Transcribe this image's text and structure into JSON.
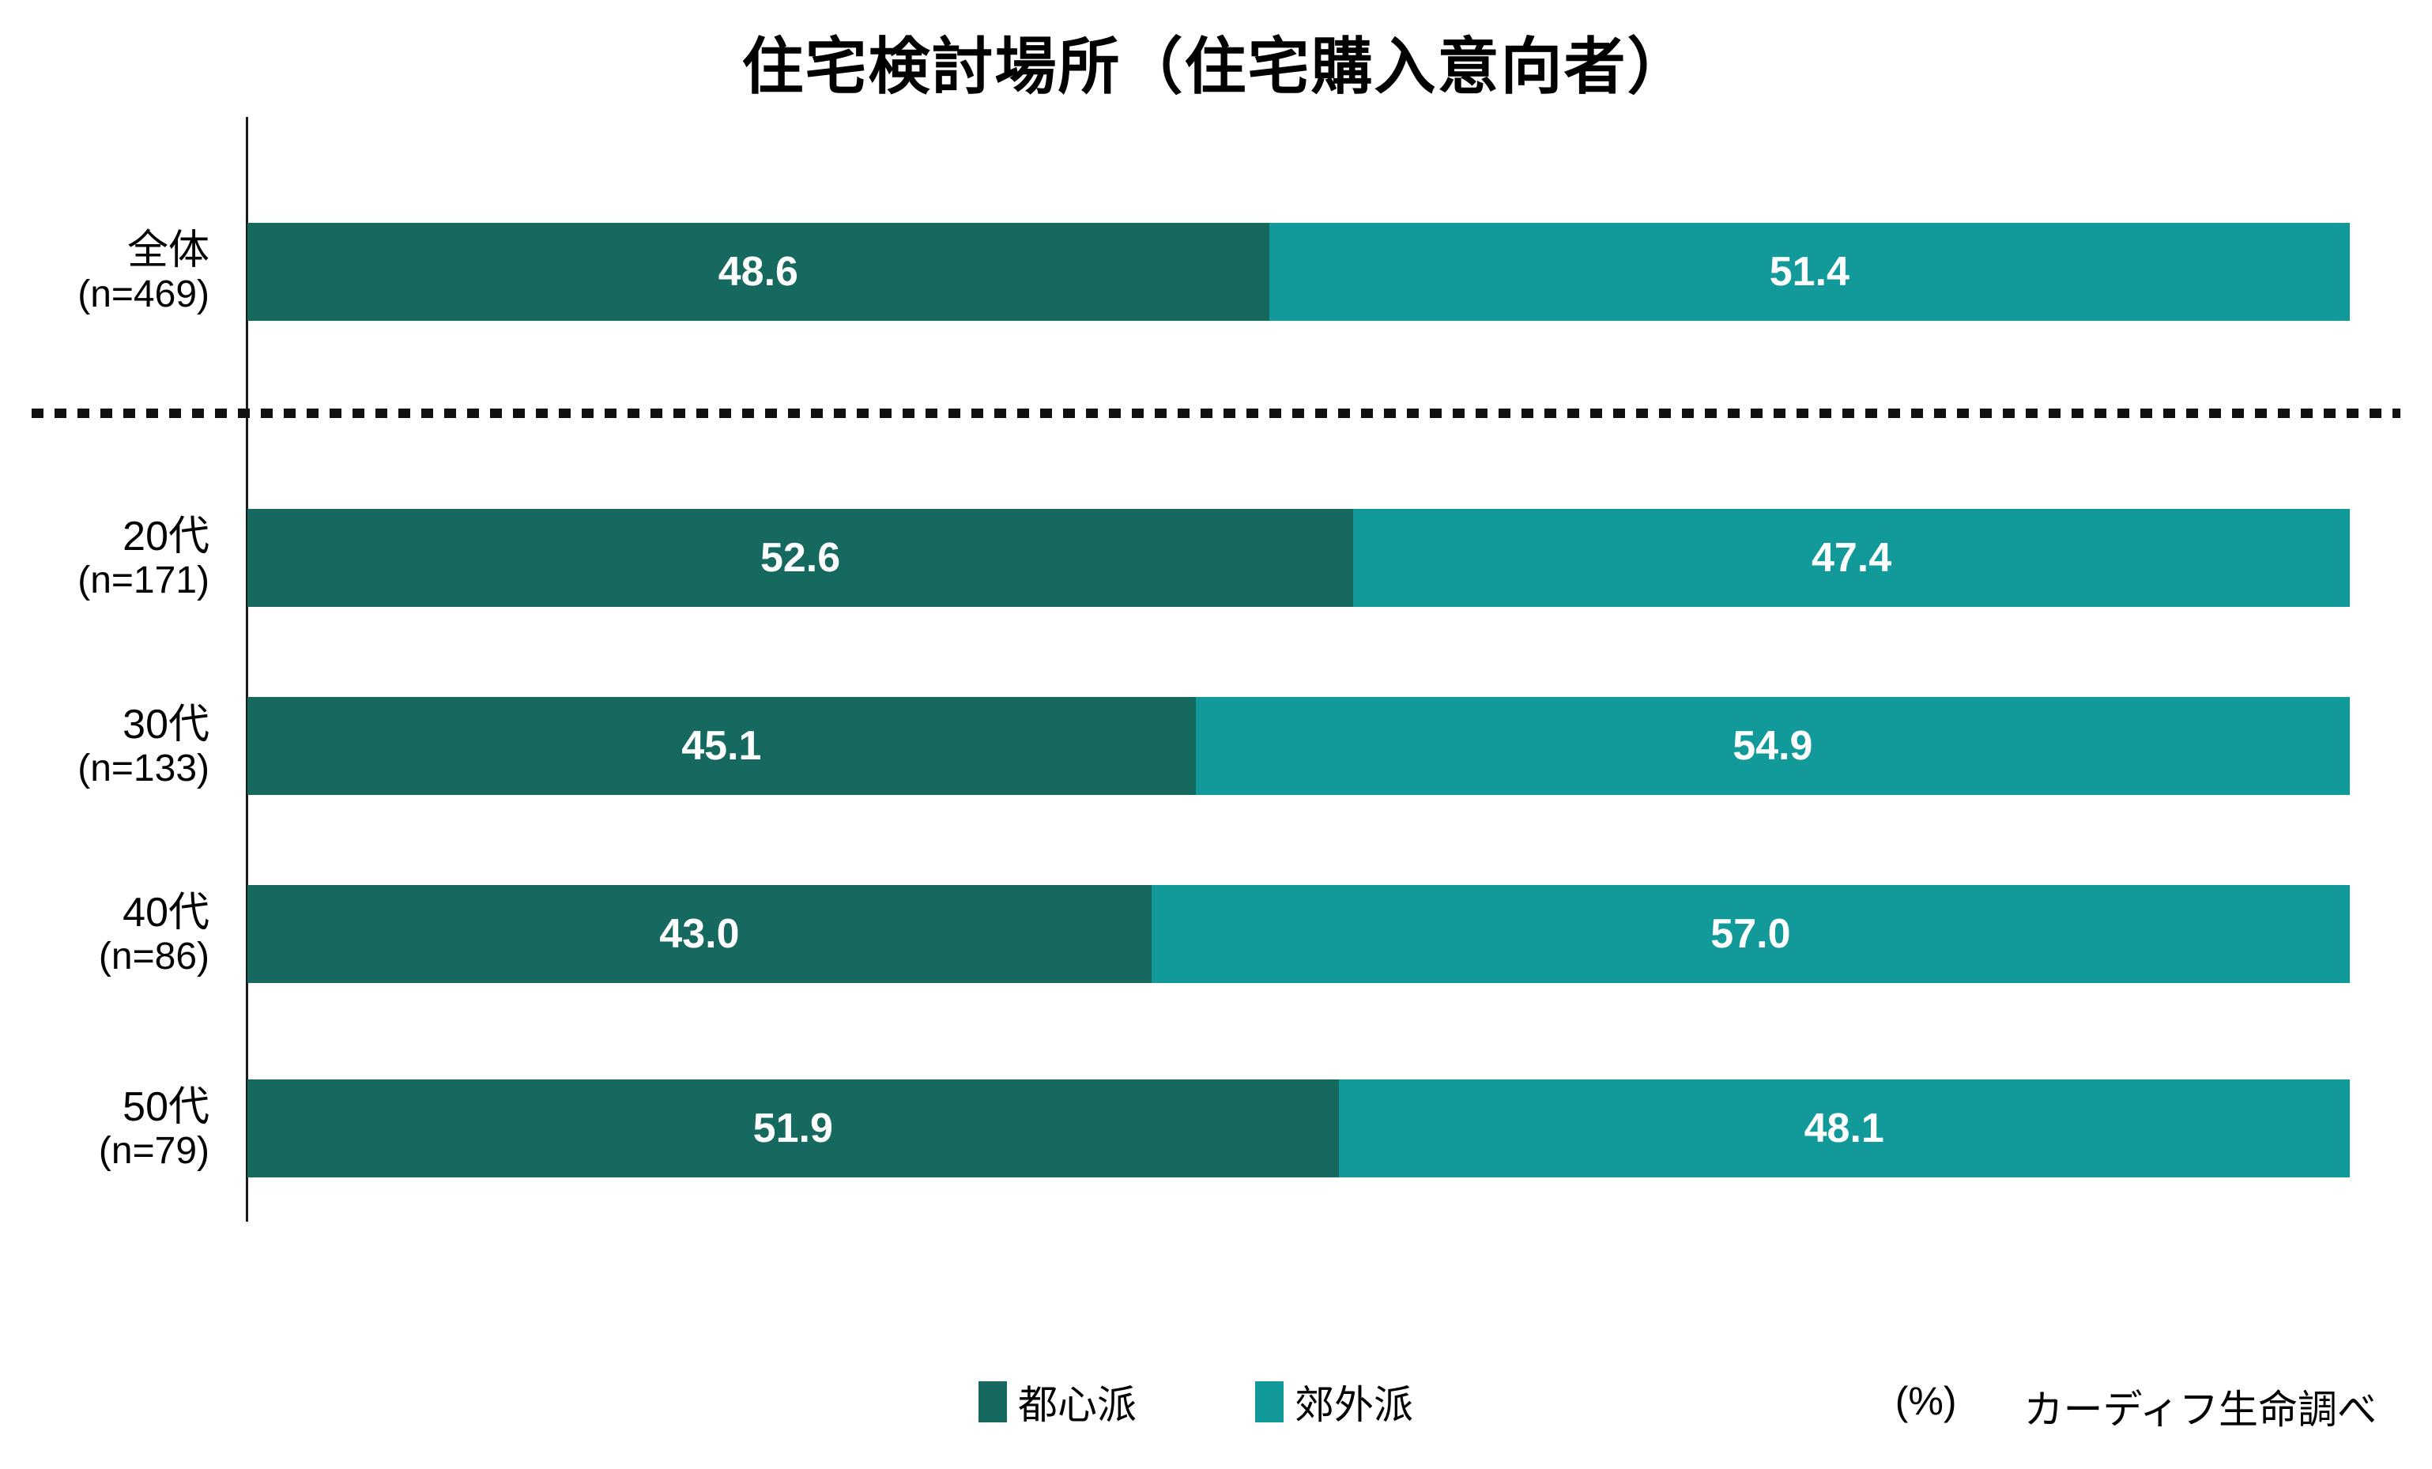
{
  "title": "住宅検討場所（住宅購入意向者）",
  "legend": {
    "items": [
      {
        "label": "都心派",
        "color": "#16695E"
      },
      {
        "label": "郊外派",
        "color": "#129A9B"
      }
    ]
  },
  "footer": {
    "unit": "(%)",
    "source": "カーディフ生命調べ"
  },
  "chart_data": {
    "type": "bar",
    "orientation": "horizontal",
    "stacked": true,
    "title": "住宅検討場所（住宅購入意向者）",
    "unit": "%",
    "xlim": [
      0,
      100
    ],
    "value_label_style": "inside-center, white, one decimal",
    "categories": [
      "全体",
      "20代",
      "30代",
      "40代",
      "50代"
    ],
    "category_sample_sizes": [
      "(n=469)",
      "(n=171)",
      "(n=133)",
      "(n=86)",
      "(n=79)"
    ],
    "separator_after_category_index": 0,
    "series": [
      {
        "name": "都心派",
        "color": "#16695E",
        "values": [
          48.6,
          52.6,
          45.1,
          43.0,
          51.9
        ]
      },
      {
        "name": "郊外派",
        "color": "#129A9B",
        "values": [
          51.4,
          47.4,
          54.9,
          57.0,
          48.1
        ]
      }
    ]
  }
}
